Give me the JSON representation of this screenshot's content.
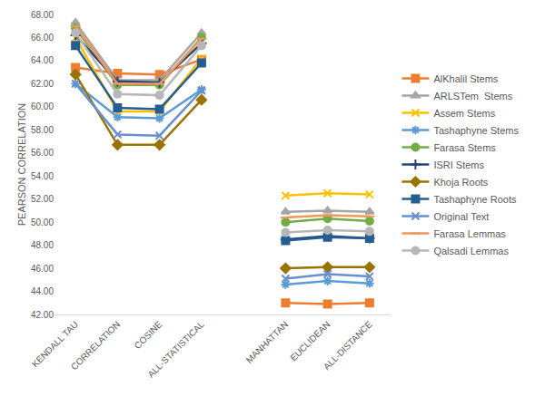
{
  "chart_data": {
    "type": "line",
    "y_label": "PEARSON CORRELATION",
    "categories": [
      "KENDALL TAU",
      "CORRELATION",
      "COSINE",
      "ALL-STATISTICAL",
      null,
      "MANHATTAN",
      "EUCLIDEAN",
      "ALL-DISTANCE"
    ],
    "ylim": [
      42,
      68
    ],
    "yticks": [
      {
        "value": 42,
        "label": "42.00"
      },
      {
        "value": 44,
        "label": "44.00"
      },
      {
        "value": 46,
        "label": "46.00"
      },
      {
        "value": 48,
        "label": "48.00"
      },
      {
        "value": 50,
        "label": "50.00"
      },
      {
        "value": 52,
        "label": "52.00"
      },
      {
        "value": 54,
        "label": "54.00"
      },
      {
        "value": 56,
        "label": "56.00"
      },
      {
        "value": 58,
        "label": "58.00"
      },
      {
        "value": 60,
        "label": "60.00"
      },
      {
        "value": 62,
        "label": "62.00"
      },
      {
        "value": 64,
        "label": "64.00"
      },
      {
        "value": 66,
        "label": "66.00"
      },
      {
        "value": 68,
        "label": "68.00"
      }
    ],
    "grid": false,
    "legend": "right",
    "series": [
      {
        "name": "AlKhalil Stems",
        "color": "#ED7D31",
        "marker": "square",
        "values": [
          63.4,
          62.9,
          62.8,
          64.1,
          null,
          43.0,
          42.9,
          43.0
        ]
      },
      {
        "name": "ARLSTem  Stems",
        "color": "#A5A5A5",
        "marker": "triangle",
        "values": [
          67.3,
          62.3,
          62.3,
          66.4,
          null,
          50.9,
          51.0,
          50.9
        ]
      },
      {
        "name": "Assem Stems",
        "color": "#FFC000",
        "marker": "x",
        "values": [
          66.0,
          59.6,
          59.6,
          64.2,
          null,
          52.3,
          52.5,
          52.4
        ]
      },
      {
        "name": "Tashaphyne Stems",
        "color": "#5B9BD5",
        "marker": "star",
        "values": [
          62.0,
          59.1,
          59.0,
          61.5,
          null,
          44.6,
          44.9,
          44.7
        ]
      },
      {
        "name": "Farasa Stems",
        "color": "#70AD47",
        "marker": "circle",
        "values": [
          66.8,
          61.9,
          61.9,
          66.0,
          null,
          50.0,
          50.3,
          50.1
        ]
      },
      {
        "name": "ISRI Stems",
        "color": "#264478",
        "marker": "plus",
        "values": [
          66.2,
          62.2,
          62.1,
          65.5,
          null,
          48.5,
          48.8,
          48.6
        ]
      },
      {
        "name": "Khoja Roots",
        "color": "#997300",
        "marker": "diamond",
        "values": [
          62.8,
          56.7,
          56.7,
          60.6,
          null,
          46.0,
          46.1,
          46.1
        ]
      },
      {
        "name": "Tashaphyne Roots",
        "color": "#255E91",
        "marker": "square",
        "values": [
          65.3,
          59.9,
          59.8,
          63.8,
          null,
          48.4,
          48.7,
          48.6
        ]
      },
      {
        "name": "Original Text",
        "color": "#698ED0",
        "marker": "x",
        "values": [
          62.0,
          57.6,
          57.5,
          61.4,
          null,
          45.1,
          45.5,
          45.3
        ]
      },
      {
        "name": "Farasa Lemmas",
        "color": "#F1975A",
        "marker": "dash",
        "values": [
          67.0,
          62.0,
          62.0,
          65.9,
          null,
          50.4,
          50.6,
          50.5
        ]
      },
      {
        "name": "Qalsadi Lemmas",
        "color": "#B7B7B7",
        "marker": "circle",
        "values": [
          66.4,
          61.1,
          61.0,
          65.3,
          null,
          49.1,
          49.3,
          49.2
        ]
      }
    ]
  }
}
